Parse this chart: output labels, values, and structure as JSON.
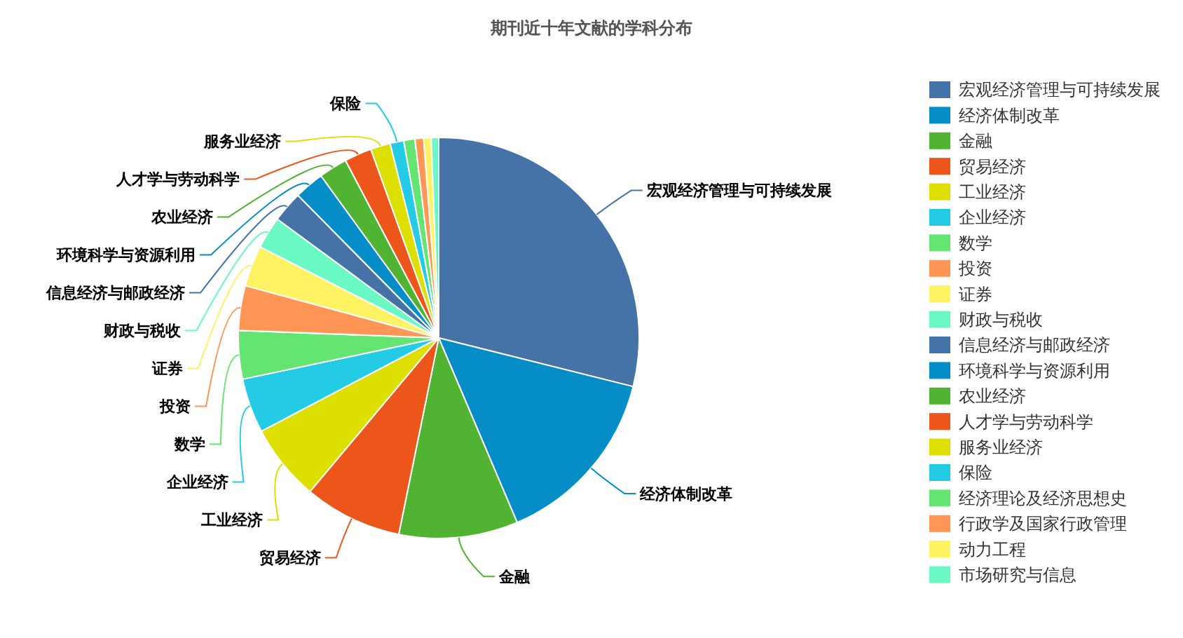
{
  "chart_data": {
    "type": "pie",
    "title": "期刊近十年文献的学科分布",
    "categories": [
      "宏观经济管理与可持续发展",
      "经济体制改革",
      "金融",
      "贸易经济",
      "工业经济",
      "企业经济",
      "数学",
      "投资",
      "证券",
      "财政与税收",
      "信息经济与邮政经济",
      "环境科学与资源利用",
      "农业经济",
      "人才学与劳动科学",
      "服务业经济",
      "保险",
      "经济理论及经济思想史",
      "行政学及国家行政管理",
      "动力工程",
      "市场研究与信息"
    ],
    "values": [
      28.9,
      14.7,
      9.6,
      7.9,
      6.2,
      4.4,
      3.9,
      3.6,
      3.3,
      2.6,
      2.5,
      2.4,
      2.3,
      2.2,
      1.6,
      1.1,
      0.9,
      0.7,
      0.6,
      0.6
    ],
    "colors": [
      "#4572a7",
      "#058dc7",
      "#50b432",
      "#ed561b",
      "#dddf00",
      "#24cbe5",
      "#64e572",
      "#ff9655",
      "#fff263",
      "#6af9c4",
      "#4572a7",
      "#058dc7",
      "#50b432",
      "#ed561b",
      "#dddf00",
      "#24cbe5",
      "#64e572",
      "#ff9655",
      "#fff263",
      "#6af9c4"
    ],
    "legend": "right"
  }
}
